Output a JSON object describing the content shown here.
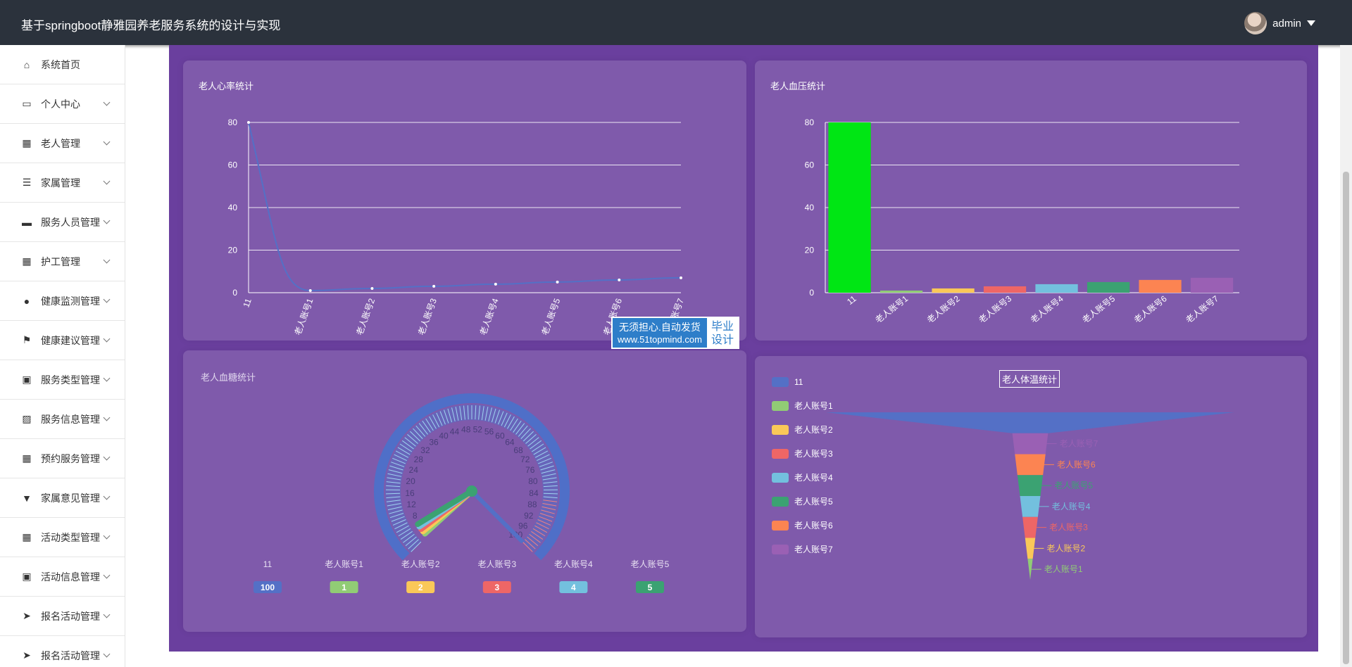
{
  "header": {
    "title": "基于springboot静雅园养老服务系统的设计与实现",
    "username": "admin"
  },
  "sidebar": {
    "items": [
      {
        "label": "系统首页",
        "icon": "home-icon",
        "chev": false
      },
      {
        "label": "个人中心",
        "icon": "card-icon",
        "chev": true
      },
      {
        "label": "老人管理",
        "icon": "grid-icon",
        "chev": true
      },
      {
        "label": "家属管理",
        "icon": "list-icon",
        "chev": true
      },
      {
        "label": "服务人员管理",
        "icon": "ticket-icon",
        "chev": true
      },
      {
        "label": "护工管理",
        "icon": "grid-icon",
        "chev": true
      },
      {
        "label": "健康监测管理",
        "icon": "bulb-icon",
        "chev": true
      },
      {
        "label": "健康建议管理",
        "icon": "flag-icon",
        "chev": true
      },
      {
        "label": "服务类型管理",
        "icon": "clipboard-icon",
        "chev": true
      },
      {
        "label": "服务信息管理",
        "icon": "chart-icon",
        "chev": true
      },
      {
        "label": "预约服务管理",
        "icon": "grid-icon",
        "chev": true
      },
      {
        "label": "家属意见管理",
        "icon": "brush-icon",
        "chev": true
      },
      {
        "label": "活动类型管理",
        "icon": "apps-icon",
        "chev": true
      },
      {
        "label": "活动信息管理",
        "icon": "clipboard-icon",
        "chev": true
      },
      {
        "label": "报名活动管理",
        "icon": "send-icon",
        "chev": true
      },
      {
        "label": "报名活动管理",
        "icon": "send-icon",
        "chev": true
      }
    ]
  },
  "watermark": {
    "line1": "无须担心.自动发货",
    "line2": "www.51topmind.com",
    "right": "毕业设计"
  },
  "charts": [
    {
      "title": "老人心率统计",
      "type": "line",
      "categories": [
        "11",
        "老人账号1",
        "老人账号2",
        "老人账号3",
        "老人账号4",
        "老人账号5",
        "老人账号6",
        "老人账号7"
      ],
      "values": [
        80,
        1,
        2,
        3,
        4,
        5,
        6,
        7
      ],
      "ylim": [
        0,
        80
      ],
      "yticks": [
        0,
        20,
        40,
        60,
        80
      ],
      "color": "#5470c6"
    },
    {
      "title": "老人血压统计",
      "type": "bar",
      "categories": [
        "11",
        "老人账号1",
        "老人账号2",
        "老人账号3",
        "老人账号4",
        "老人账号5",
        "老人账号6",
        "老人账号7"
      ],
      "values": [
        80,
        1,
        2,
        3,
        4,
        5,
        6,
        7
      ],
      "ylim": [
        0,
        80
      ],
      "yticks": [
        0,
        20,
        40,
        60,
        80
      ],
      "colors": [
        "#00e614",
        "#91cc75",
        "#fac858",
        "#ee6666",
        "#73c0de",
        "#3ba272",
        "#fc8452",
        "#9a60b4"
      ]
    },
    {
      "title": "老人血糖统计",
      "type": "gauge",
      "categories": [
        "11",
        "老人账号1",
        "老人账号2",
        "老人账号3",
        "老人账号4",
        "老人账号5"
      ],
      "values": [
        100,
        1,
        2,
        3,
        4,
        5
      ],
      "colors": [
        "#5470c6",
        "#91cc75",
        "#fac858",
        "#ee6666",
        "#73c0de",
        "#3ba272"
      ],
      "ticks": [
        "4",
        "8",
        "12",
        "16",
        "20",
        "24",
        "28",
        "32",
        "36",
        "40",
        "44",
        "48",
        "52",
        "56",
        "60",
        "64",
        "68",
        "72",
        "76",
        "80",
        "84",
        "88",
        "92",
        "96",
        "100"
      ]
    },
    {
      "title": "老人体温统计",
      "type": "funnel",
      "categories": [
        "11",
        "老人账号1",
        "老人账号2",
        "老人账号3",
        "老人账号4",
        "老人账号5",
        "老人账号6",
        "老人账号7"
      ],
      "values": [
        80,
        1,
        2,
        3,
        4,
        5,
        6,
        7
      ],
      "colors": [
        "#5470c6",
        "#91cc75",
        "#fac858",
        "#ee6666",
        "#73c0de",
        "#3ba272",
        "#fc8452",
        "#9a60b4"
      ]
    }
  ]
}
